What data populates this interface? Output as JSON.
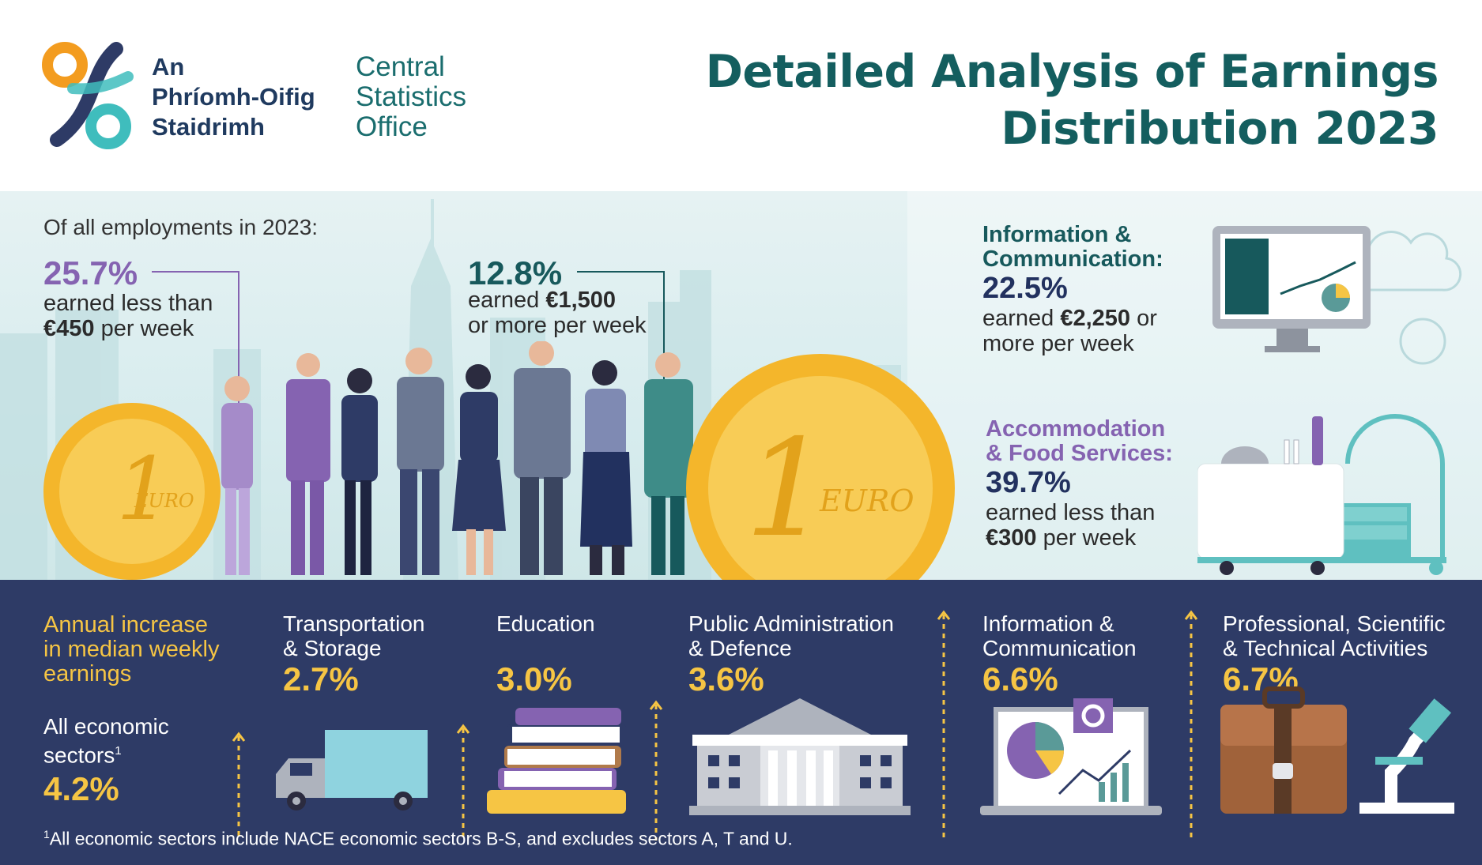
{
  "colors": {
    "navy": "#2e3b66",
    "teal": "#17595c",
    "purple": "#8563b1",
    "yellow": "#f6c544",
    "orange": "#f39c1f",
    "light_teal": "#3fbdbd"
  },
  "header": {
    "logo_irish": [
      "An",
      "Phríomh-Oifig",
      "Staidrimh"
    ],
    "logo_english": [
      "Central",
      "Statistics",
      "Office"
    ],
    "title_line1": "Detailed Analysis of Earnings",
    "title_line2": "Distribution 2023"
  },
  "overview": {
    "heading": "Of all employments in 2023:",
    "stat1": {
      "pct": "25.7%",
      "line1": "earned less than",
      "amount": "€450",
      "rest": " per week"
    },
    "stat2": {
      "pct": "12.8%",
      "line1_pre": "earned ",
      "amount": "€1,500",
      "line2": "or more per week"
    }
  },
  "sectors_side": {
    "info_comm": {
      "name_line1": "Information &",
      "name_line2": "Communication:",
      "pct": "22.5%",
      "pre": "earned ",
      "amount": "€2,250",
      "post": " or",
      "line2": "more per week"
    },
    "accom_food": {
      "name_line1": "Accommodation",
      "name_line2": "& Food Services:",
      "pct": "39.7%",
      "line1": "earned less than",
      "amount": "€300",
      "rest": " per week"
    }
  },
  "coins": {
    "big_num": "1",
    "big_word": "EURO"
  },
  "annual": {
    "heading": [
      "Annual increase",
      "in median weekly",
      "earnings"
    ],
    "all_sectors": {
      "label1": "All economic",
      "label2": "sectors",
      "sup": "1",
      "pct": "4.2%"
    },
    "items": [
      {
        "label1": "Transportation",
        "label2": "& Storage",
        "pct": "2.7%",
        "icon": "truck-icon"
      },
      {
        "label1": "Education",
        "label2": "",
        "pct": "3.0%",
        "icon": "books-icon"
      },
      {
        "label1": "Public Administration",
        "label2": "& Defence",
        "pct": "3.6%",
        "icon": "government-building-icon"
      },
      {
        "label1": "Information &",
        "label2": "Communication",
        "pct": "6.6%",
        "icon": "laptop-chart-icon"
      },
      {
        "label1": "Professional, Scientific",
        "label2": "& Technical Activities",
        "pct": "6.7%",
        "icon": "briefcase-microscope-icon"
      }
    ]
  },
  "footnote": {
    "sup": "1",
    "text": "All economic sectors include NACE economic sectors B-S, and excludes sectors A, T and U."
  }
}
